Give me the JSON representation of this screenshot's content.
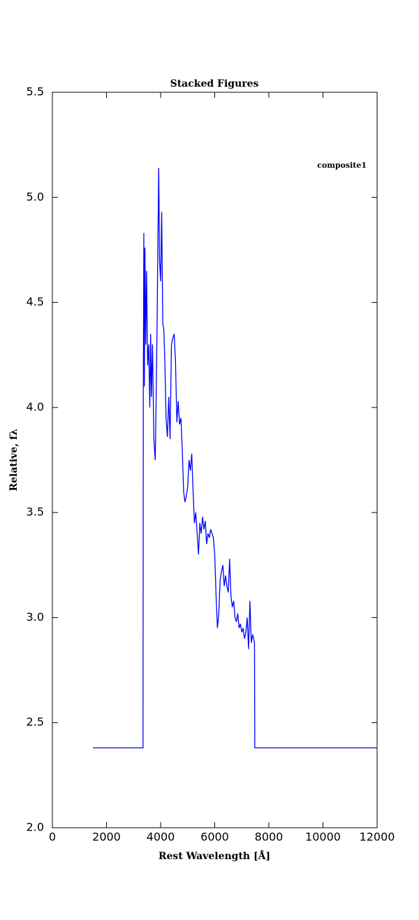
{
  "chart_data": {
    "type": "line",
    "title": "Stacked Figures",
    "x_label": "Rest Wavelength [Å]",
    "y_label": "Relative, fλ",
    "x": [
      1500,
      3350,
      3360,
      3380,
      3400,
      3420,
      3450,
      3480,
      3520,
      3560,
      3600,
      3630,
      3660,
      3700,
      3750,
      3800,
      3830,
      3870,
      3900,
      3930,
      3960,
      4000,
      4040,
      4080,
      4120,
      4160,
      4200,
      4250,
      4300,
      4350,
      4400,
      4450,
      4500,
      4550,
      4600,
      4650,
      4700,
      4750,
      4800,
      4850,
      4900,
      4950,
      5000,
      5050,
      5100,
      5150,
      5200,
      5250,
      5300,
      5350,
      5400,
      5450,
      5500,
      5550,
      5600,
      5650,
      5700,
      5750,
      5800,
      5850,
      5900,
      5950,
      6000,
      6050,
      6100,
      6150,
      6200,
      6250,
      6300,
      6350,
      6400,
      6450,
      6500,
      6550,
      6600,
      6650,
      6700,
      6750,
      6800,
      6850,
      6900,
      6950,
      7000,
      7050,
      7100,
      7150,
      7200,
      7250,
      7300,
      7350,
      7400,
      7470,
      7480,
      12000
    ],
    "series": [
      {
        "name": "composite1",
        "color": "#0000ff",
        "values": [
          2.38,
          2.38,
          4.05,
          4.83,
          4.1,
          4.76,
          4.3,
          4.65,
          4.2,
          4.3,
          4.0,
          4.35,
          4.05,
          4.3,
          3.85,
          3.75,
          4.0,
          4.4,
          4.8,
          5.14,
          4.7,
          4.6,
          4.93,
          4.4,
          4.37,
          4.2,
          3.95,
          3.86,
          4.05,
          3.85,
          4.3,
          4.33,
          4.35,
          4.22,
          3.93,
          4.03,
          3.92,
          3.95,
          3.8,
          3.6,
          3.55,
          3.58,
          3.62,
          3.75,
          3.7,
          3.78,
          3.6,
          3.45,
          3.5,
          3.4,
          3.3,
          3.45,
          3.4,
          3.48,
          3.42,
          3.46,
          3.35,
          3.4,
          3.38,
          3.42,
          3.4,
          3.38,
          3.3,
          3.1,
          2.95,
          3.02,
          3.18,
          3.22,
          3.25,
          3.15,
          3.2,
          3.15,
          3.12,
          3.28,
          3.1,
          3.05,
          3.08,
          3.0,
          2.98,
          3.02,
          2.95,
          2.97,
          2.93,
          2.95,
          2.9,
          2.93,
          3.0,
          2.85,
          3.08,
          2.88,
          2.92,
          2.88,
          2.38,
          2.38
        ]
      }
    ],
    "xlim": [
      0,
      12000
    ],
    "xticks": [
      0,
      2000,
      4000,
      6000,
      8000,
      10000,
      12000
    ],
    "ylim": [
      2.0,
      5.5
    ],
    "yticks": [
      {
        "value": 2,
        "label": "2.0"
      },
      2.5,
      {
        "value": 3,
        "label": "3.0"
      },
      3.5,
      {
        "value": 4,
        "label": "4.0"
      },
      4.5,
      {
        "value": 5,
        "label": "5.0"
      },
      5.5
    ],
    "grid": false,
    "legend": "upper right"
  }
}
